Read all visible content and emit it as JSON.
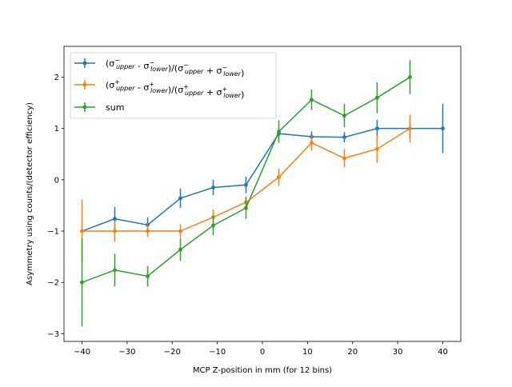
{
  "chart_data": {
    "type": "line",
    "title": "",
    "xlabel": "MCP Z-position in mm (for 12 bins)",
    "ylabel": "Asymmetry using counts/(detector efficiency)",
    "xlim": [
      -44,
      44
    ],
    "ylim": [
      -3.15,
      2.6
    ],
    "xticks": [
      -40,
      -30,
      -20,
      -10,
      0,
      10,
      20,
      30,
      40
    ],
    "xtick_labels": [
      "−40",
      "−30",
      "−20",
      "−10",
      "0",
      "10",
      "20",
      "30",
      "40"
    ],
    "yticks": [
      -3,
      -2,
      -1,
      0,
      1,
      2
    ],
    "ytick_labels": [
      "−3",
      "−2",
      "−1",
      "0",
      "1",
      "2"
    ],
    "grid": false,
    "legend_position": "top-left",
    "series": [
      {
        "name": "(σ⁻_upper - σ⁻_lower)/(σ⁻_upper + σ⁻_lower)",
        "legend_sign": "−",
        "color": "#1f77b4",
        "x": [
          -40,
          -32.73,
          -25.45,
          -18.18,
          -10.91,
          -3.64,
          3.64,
          10.91,
          18.18,
          25.45,
          32.73,
          40
        ],
        "y": [
          -1.0,
          -0.76,
          -0.88,
          -0.36,
          -0.15,
          -0.1,
          0.9,
          0.84,
          0.83,
          1.0,
          1.0,
          1.0
        ],
        "yerr": [
          0.0,
          0.23,
          0.15,
          0.19,
          0.15,
          0.16,
          0.08,
          0.1,
          0.1,
          0.17,
          0.17,
          0.48
        ]
      },
      {
        "name": "(σ⁺_upper - σ⁺_lower)/(σ⁺_upper + σ⁺_lower)",
        "legend_sign": "+",
        "color": "#ff7f0e",
        "x": [
          -40,
          -32.73,
          -25.45,
          -18.18,
          -10.91,
          -3.64,
          3.64,
          10.91,
          18.18,
          25.45,
          32.73
        ],
        "y": [
          -1.0,
          -1.0,
          -1.0,
          -1.0,
          -0.73,
          -0.44,
          0.05,
          0.72,
          0.42,
          0.6,
          1.0
        ],
        "yerr": [
          0.61,
          0.2,
          0.12,
          0.13,
          0.15,
          0.12,
          0.17,
          0.15,
          0.18,
          0.27,
          0.27
        ]
      },
      {
        "name": "sum",
        "color": "#2ca02c",
        "x": [
          -40,
          -32.73,
          -25.45,
          -18.18,
          -10.91,
          -3.64,
          3.64,
          10.91,
          18.18,
          25.45,
          32.73
        ],
        "y": [
          -2.0,
          -1.76,
          -1.88,
          -1.36,
          -0.89,
          -0.55,
          0.94,
          1.56,
          1.25,
          1.6,
          2.0
        ],
        "yerr": [
          0.86,
          0.32,
          0.2,
          0.22,
          0.19,
          0.21,
          0.22,
          0.2,
          0.23,
          0.3,
          0.33
        ]
      }
    ]
  },
  "legend": {
    "entries": [
      {
        "label_parts": [
          "(σ",
          "−",
          "upper",
          " - σ",
          "−",
          "lower",
          ")/(σ",
          "−",
          "upper",
          " + σ",
          "−",
          "lower",
          ")"
        ]
      },
      {
        "label_parts": [
          "(σ",
          "+",
          "upper",
          " - σ",
          "+",
          "lower",
          ")/(σ",
          "+",
          "upper",
          " + σ",
          "+",
          "lower",
          ")"
        ]
      },
      {
        "label": "sum"
      }
    ]
  }
}
